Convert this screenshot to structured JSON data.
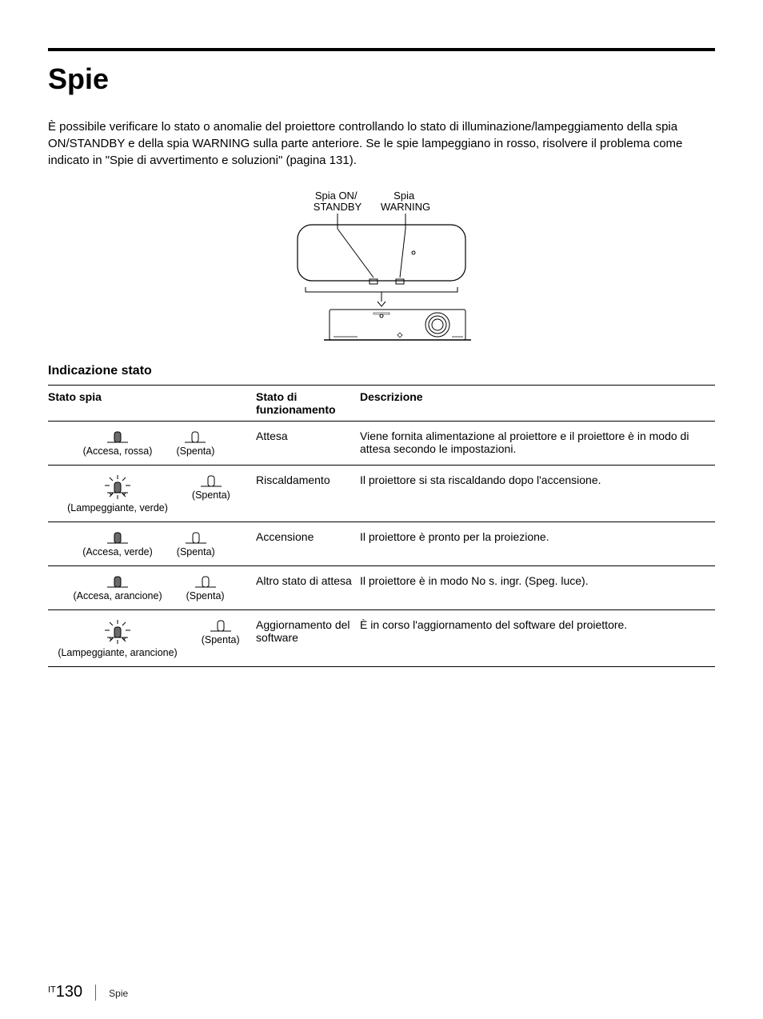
{
  "title": "Spie",
  "intro": "È possibile verificare lo stato o anomalie del proiettore controllando lo stato di illuminazione/lampeggiamento della spia ON/STANDBY e della spia WARNING sulla parte anteriore. Se le spie lampeggiano in rosso, risolvere il problema come indicato in \"Spie di avvertimento e soluzioni\" (pagina 131).",
  "diagram": {
    "label_on_standby": "Spia ON/\nSTANDBY",
    "label_warning": "Spia\nWARNING"
  },
  "subhead": "Indicazione stato",
  "table": {
    "headers": {
      "col1": "Stato spia",
      "col2": "Stato di funzionamento",
      "col3": "Descrizione"
    },
    "rows": [
      {
        "lamps": [
          {
            "icon": "solid",
            "label": "(Accesa, rossa)"
          },
          {
            "icon": "hollow",
            "label": "(Spenta)"
          }
        ],
        "state": "Attesa",
        "desc": "Viene fornita alimentazione al proiettore e il proiettore è in modo di attesa secondo le impostazioni."
      },
      {
        "lamps": [
          {
            "icon": "flash",
            "label": "(Lampeggiante, verde)"
          },
          {
            "icon": "hollow",
            "label": "(Spenta)"
          }
        ],
        "state": "Riscaldamento",
        "desc": "Il proiettore si sta riscaldando dopo l'accensione."
      },
      {
        "lamps": [
          {
            "icon": "solid",
            "label": "(Accesa, verde)"
          },
          {
            "icon": "hollow",
            "label": "(Spenta)"
          }
        ],
        "state": "Accensione",
        "desc": "Il proiettore è pronto per la proiezione."
      },
      {
        "lamps": [
          {
            "icon": "solid",
            "label": "(Accesa, arancione)"
          },
          {
            "icon": "hollow",
            "label": "(Spenta)"
          }
        ],
        "state": "Altro stato di attesa",
        "desc": "Il proiettore è in modo No s. ingr. (Speg. luce)."
      },
      {
        "lamps": [
          {
            "icon": "flash",
            "label": "(Lampeggiante, arancione)"
          },
          {
            "icon": "hollow",
            "label": "(Spenta)"
          }
        ],
        "state": "Aggiornamento del software",
        "desc": "È in corso l'aggiornamento del software del proiettore."
      }
    ]
  },
  "footer": {
    "prefix": "IT",
    "page": "130",
    "section": "Spie"
  },
  "style": {
    "rule_color": "#000000",
    "text_color": "#000000",
    "lamp_stroke": "#000000",
    "lamp_fill_solid": "#6b6b6b",
    "lamp_fill_hollow": "#ffffff"
  }
}
